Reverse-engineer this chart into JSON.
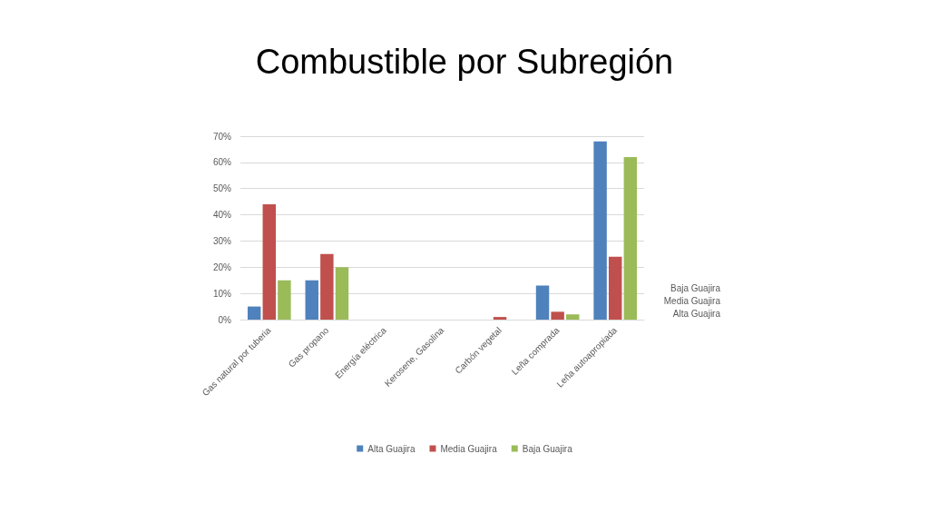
{
  "chart_data": {
    "type": "bar",
    "title": "Combustible por Subregión",
    "categories": [
      "Gas natural por tuberia",
      "Gas propano",
      "Energía eléctrica",
      "Kerosene, Gasolina",
      "Carbón vegetal",
      "Leña comprada",
      "Leña autoapropiada"
    ],
    "series": [
      {
        "name": "Alta Guajira",
        "color": "#4f81bd",
        "values": [
          5,
          15,
          0,
          0,
          0,
          13,
          68
        ]
      },
      {
        "name": "Media Guajira",
        "color": "#c0504d",
        "values": [
          44,
          25,
          0,
          0,
          1,
          3,
          24
        ]
      },
      {
        "name": "Baja Guajira",
        "color": "#9bbb59",
        "values": [
          15,
          20,
          0,
          0,
          0,
          2,
          62
        ]
      }
    ],
    "ylim": [
      0,
      70
    ],
    "yticks": [
      {
        "value": 0,
        "label": "0%"
      },
      {
        "value": 10,
        "label": "10%"
      },
      {
        "value": 20,
        "label": "20%"
      },
      {
        "value": 30,
        "label": "30%"
      },
      {
        "value": 40,
        "label": "40%"
      },
      {
        "value": 50,
        "label": "50%"
      },
      {
        "value": 60,
        "label": "60%"
      },
      {
        "value": 70,
        "label": "70%"
      }
    ],
    "grid": "y",
    "legend": "bottom"
  }
}
